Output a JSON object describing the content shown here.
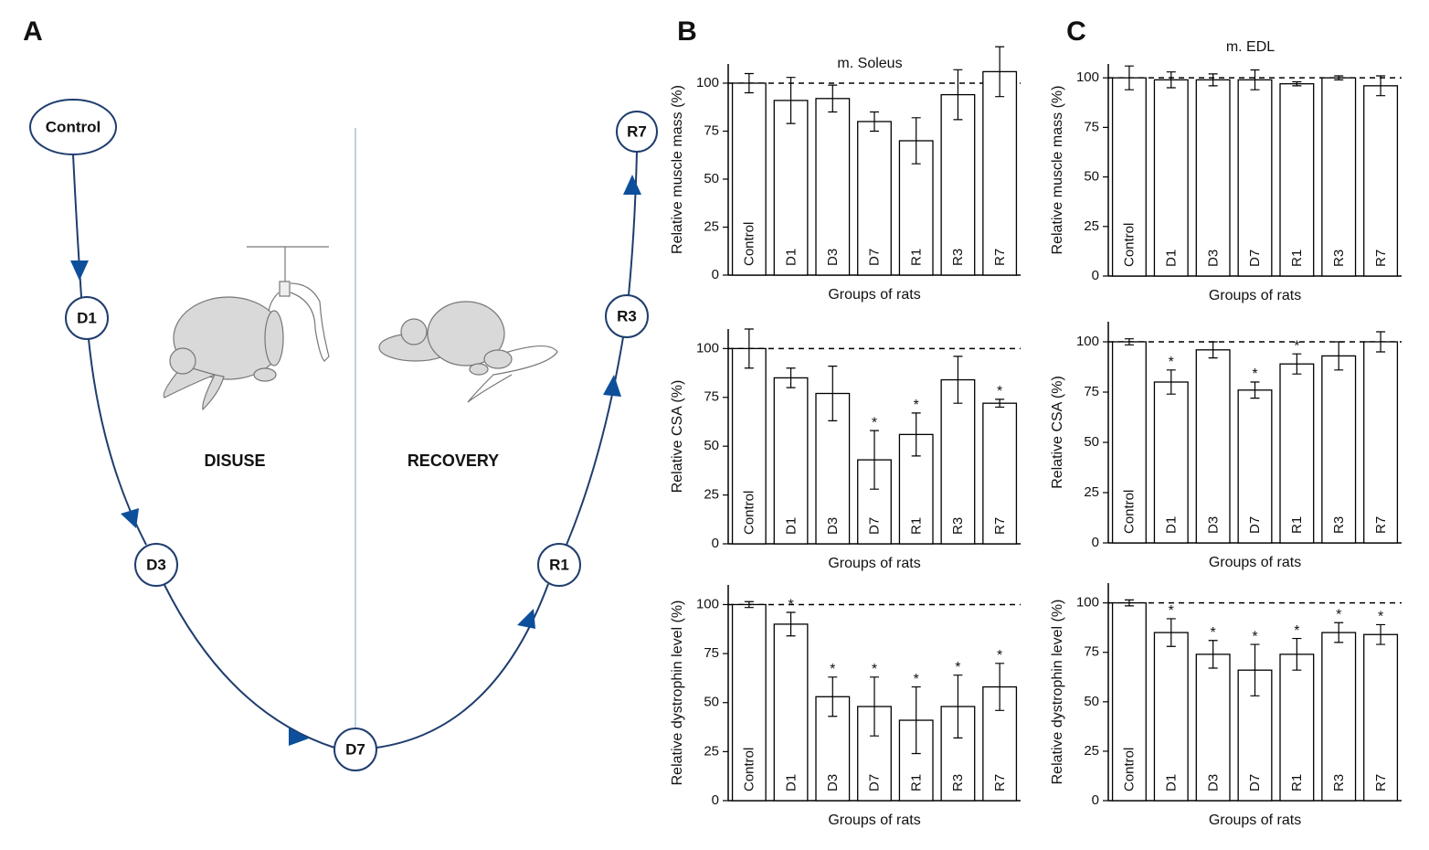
{
  "panels": [
    "A",
    "B",
    "C"
  ],
  "diagram": {
    "nodes": [
      {
        "label": "Control"
      },
      {
        "label": "D1"
      },
      {
        "label": "D3"
      },
      {
        "label": "D7"
      },
      {
        "label": "R1"
      },
      {
        "label": "R3"
      },
      {
        "label": "R7"
      }
    ],
    "phases": [
      "DISUSE",
      "RECOVERY"
    ]
  },
  "chart_data": [
    {
      "type": "bar",
      "title": "m. Soleus",
      "x_label": "Groups of rats",
      "y_label": "Relative muscle mass (%)",
      "categories": [
        "Control",
        "D1",
        "D3",
        "D7",
        "R1",
        "R3",
        "R7"
      ],
      "values": [
        100,
        91,
        92,
        80,
        70,
        94,
        106
      ],
      "errors": [
        5,
        12,
        7,
        5,
        12,
        13,
        13
      ],
      "significance": [
        null,
        null,
        null,
        null,
        null,
        null,
        null
      ],
      "reference": 100,
      "color": "#ffffff",
      "ylim": [
        0,
        110
      ],
      "yticks": [
        0,
        25,
        50,
        75,
        100
      ]
    },
    {
      "type": "bar",
      "x_label": "Groups of rats",
      "y_label": "Relative CSA (%)",
      "categories": [
        "Control",
        "D1",
        "D3",
        "D7",
        "R1",
        "R3",
        "R7"
      ],
      "values": [
        100,
        85,
        77,
        43,
        56,
        84,
        72
      ],
      "errors": [
        10,
        5,
        14,
        15,
        11,
        12,
        2
      ],
      "significance": [
        null,
        null,
        null,
        "*",
        "*",
        null,
        "*"
      ],
      "reference": 100,
      "color": "#ffffff",
      "ylim": [
        0,
        110
      ],
      "yticks": [
        0,
        25,
        50,
        75,
        100
      ]
    },
    {
      "type": "bar",
      "x_label": "Groups of rats",
      "y_label": "Relative dystrophin level (%)",
      "categories": [
        "Control",
        "D1",
        "D3",
        "D7",
        "R1",
        "R3",
        "R7"
      ],
      "values": [
        100,
        90,
        53,
        48,
        41,
        48,
        58
      ],
      "errors": [
        1.5,
        6,
        10,
        15,
        17,
        16,
        12
      ],
      "significance": [
        null,
        "*",
        "*",
        "*",
        "*",
        "*",
        "*"
      ],
      "reference": 100,
      "color": "#ffffff",
      "ylim": [
        0,
        110
      ],
      "yticks": [
        0,
        25,
        50,
        75,
        100
      ]
    },
    {
      "type": "bar",
      "title": "m. EDL",
      "x_label": "Groups of rats",
      "y_label": "Relative muscle mass (%)",
      "categories": [
        "Control",
        "D1",
        "D3",
        "D7",
        "R1",
        "R3",
        "R7"
      ],
      "values": [
        100,
        99,
        99,
        99,
        97,
        100,
        96
      ],
      "errors": [
        6,
        4,
        3,
        5,
        1,
        1,
        5
      ],
      "significance": [
        null,
        null,
        null,
        null,
        null,
        null,
        null
      ],
      "reference": 100,
      "color": "#ffffff",
      "ylim": [
        0,
        107
      ],
      "yticks": [
        0,
        25,
        50,
        75,
        100
      ]
    },
    {
      "type": "bar",
      "x_label": "Groups of rats",
      "y_label": "Relative CSA (%)",
      "categories": [
        "Control",
        "D1",
        "D3",
        "D7",
        "R1",
        "R3",
        "R7"
      ],
      "values": [
        100,
        80,
        96,
        76,
        89,
        93,
        100
      ],
      "errors": [
        1.5,
        6,
        4,
        4,
        5,
        7,
        5
      ],
      "significance": [
        null,
        "*",
        null,
        "*",
        "*",
        null,
        null
      ],
      "reference": 100,
      "color": "#ffffff",
      "ylim": [
        0,
        110
      ],
      "yticks": [
        0,
        25,
        50,
        75,
        100
      ]
    },
    {
      "type": "bar",
      "x_label": "Groups of rats",
      "y_label": "Relative dystrophin level (%)",
      "categories": [
        "Control",
        "D1",
        "D3",
        "D7",
        "R1",
        "R3",
        "R7"
      ],
      "values": [
        100,
        85,
        74,
        66,
        74,
        85,
        84
      ],
      "errors": [
        1.5,
        7,
        7,
        13,
        8,
        5,
        5
      ],
      "significance": [
        null,
        "*",
        "*",
        "*",
        "*",
        "*",
        "*"
      ],
      "reference": 100,
      "color": "#ffffff",
      "ylim": [
        0,
        110
      ],
      "yticks": [
        0,
        25,
        50,
        75,
        100
      ]
    }
  ]
}
